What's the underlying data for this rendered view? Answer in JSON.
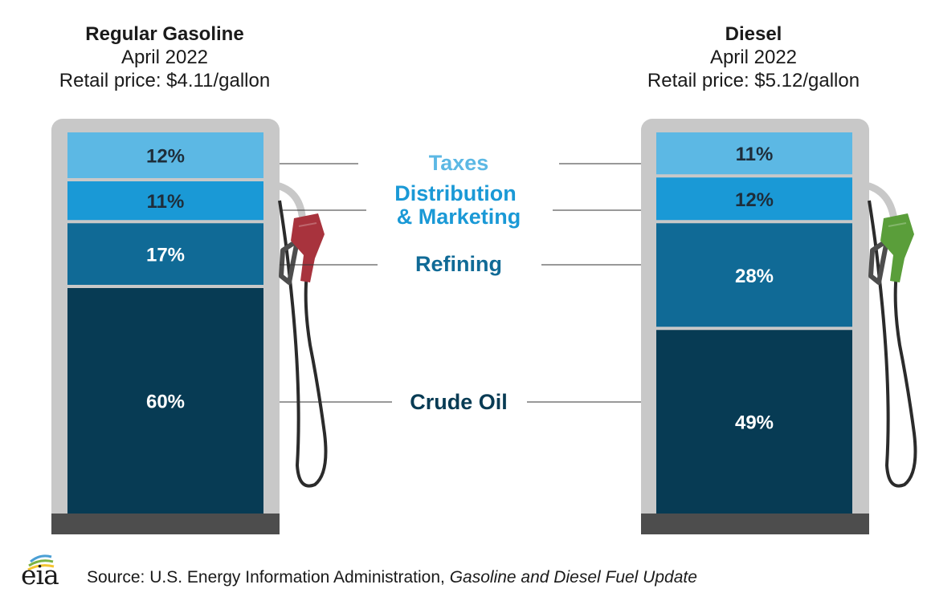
{
  "chart_data": {
    "type": "stacked-bar",
    "categories": [
      "Regular Gasoline",
      "Diesel"
    ],
    "series": [
      {
        "name": "Crude Oil",
        "values": [
          60,
          49
        ],
        "color": "#073b54"
      },
      {
        "name": "Refining",
        "values": [
          17,
          28
        ],
        "color": "#106a96"
      },
      {
        "name": "Distribution & Marketing",
        "values": [
          11,
          12
        ],
        "color": "#1a99d6"
      },
      {
        "name": "Taxes",
        "values": [
          12,
          11
        ],
        "color": "#5cb8e4"
      }
    ],
    "value_labels": {
      "Regular Gasoline": [
        "60%",
        "17%",
        "11%",
        "12%"
      ],
      "Diesel": [
        "49%",
        "28%",
        "12%",
        "11%"
      ]
    },
    "legend_labels": {
      "taxes": "Taxes",
      "distribution_1": "Distribution",
      "distribution_2": "& Marketing",
      "refining": "Refining",
      "crude": "Crude Oil"
    },
    "label_colors": {
      "taxes": "#5cb8e4",
      "distribution": "#1a99d6",
      "refining": "#106a96",
      "crude": "#073b54"
    },
    "nozzle_colors": {
      "gasoline": "#a8333d",
      "diesel": "#5a9e3a"
    },
    "unit": "percent of retail price",
    "ylim": [
      0,
      100
    ]
  },
  "pumps": [
    {
      "name": "Regular Gasoline",
      "period": "April 2022",
      "price": "Retail price: $4.11/gallon"
    },
    {
      "name": "Diesel",
      "period": "April 2022",
      "price": "Retail price: $5.12/gallon"
    }
  ],
  "source": {
    "prefix": "Source: U.S. Energy Information Administration, ",
    "title": "Gasoline and Diesel Fuel Update"
  },
  "logo": {
    "text": "eia"
  }
}
